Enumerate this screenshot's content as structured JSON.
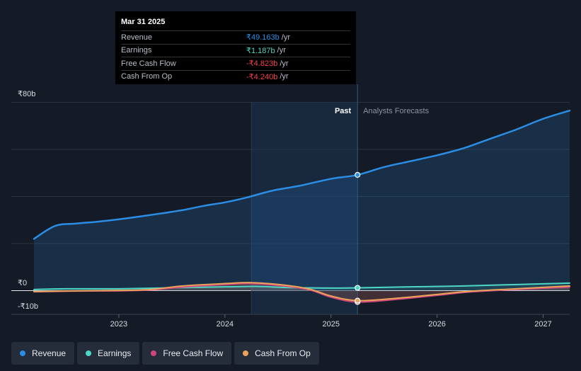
{
  "chart_data": {
    "type": "line",
    "currency": "₹",
    "y_axis_labels": [
      "₹80b",
      "₹0",
      "-₹10b"
    ],
    "ylim": [
      -10,
      80
    ],
    "x_ticks": [
      {
        "label": "2023",
        "x": 2023.0
      },
      {
        "label": "2024",
        "x": 2024.0
      },
      {
        "label": "2025",
        "x": 2025.0
      },
      {
        "label": "2026",
        "x": 2026.0
      },
      {
        "label": "2027",
        "x": 2027.0
      }
    ],
    "xlim": [
      2022.2,
      2027.25
    ],
    "past_forecast_split": 2025.25,
    "shaded_region_start": 2024.25,
    "past_label": "Past",
    "forecast_label": "Analysts Forecasts",
    "series": [
      {
        "name": "Revenue",
        "color": "#2b8de3",
        "fill": true,
        "points": [
          [
            2022.2,
            22
          ],
          [
            2022.4,
            27.5
          ],
          [
            2022.6,
            28.5
          ],
          [
            2022.8,
            29.3
          ],
          [
            2023.0,
            30.3
          ],
          [
            2023.2,
            31.5
          ],
          [
            2023.4,
            32.8
          ],
          [
            2023.6,
            34.2
          ],
          [
            2023.8,
            36
          ],
          [
            2024.0,
            37.5
          ],
          [
            2024.2,
            39.5
          ],
          [
            2024.45,
            42.5
          ],
          [
            2024.7,
            44.5
          ],
          [
            2025.0,
            47.5
          ],
          [
            2025.25,
            49.163
          ],
          [
            2025.5,
            52.5
          ],
          [
            2025.75,
            55
          ],
          [
            2026.0,
            57.5
          ],
          [
            2026.25,
            60.5
          ],
          [
            2026.5,
            64.5
          ],
          [
            2026.75,
            68.5
          ],
          [
            2027.0,
            73
          ],
          [
            2027.25,
            76.5
          ]
        ]
      },
      {
        "name": "Earnings",
        "color": "#4fd7c6",
        "fill": false,
        "points": [
          [
            2022.2,
            0.5
          ],
          [
            2022.5,
            0.8
          ],
          [
            2023.0,
            0.8
          ],
          [
            2023.5,
            1.2
          ],
          [
            2024.0,
            1.6
          ],
          [
            2024.3,
            1.8
          ],
          [
            2024.6,
            1.3
          ],
          [
            2025.0,
            1.1
          ],
          [
            2025.25,
            1.187
          ],
          [
            2025.75,
            1.6
          ],
          [
            2026.25,
            2.0
          ],
          [
            2026.75,
            2.6
          ],
          [
            2027.25,
            3.2
          ]
        ]
      },
      {
        "name": "Free Cash Flow",
        "color": "#d0457e",
        "fill": false,
        "points": [
          [
            2022.2,
            -0.5
          ],
          [
            2022.6,
            -0.2
          ],
          [
            2023.0,
            -0.1
          ],
          [
            2023.3,
            0.3
          ],
          [
            2023.6,
            1.5
          ],
          [
            2024.0,
            2.6
          ],
          [
            2024.25,
            3.0
          ],
          [
            2024.55,
            2.0
          ],
          [
            2024.8,
            0.3
          ],
          [
            2025.0,
            -2.8
          ],
          [
            2025.25,
            -4.823
          ],
          [
            2025.6,
            -3.8
          ],
          [
            2026.0,
            -2.0
          ],
          [
            2026.3,
            -0.6
          ],
          [
            2026.75,
            0.5
          ],
          [
            2027.25,
            1.5
          ]
        ]
      },
      {
        "name": "Cash From Op",
        "color": "#e9a35a",
        "fill": false,
        "points": [
          [
            2022.2,
            -0.4
          ],
          [
            2022.6,
            -0.1
          ],
          [
            2023.0,
            0.1
          ],
          [
            2023.3,
            0.5
          ],
          [
            2023.6,
            2.0
          ],
          [
            2024.0,
            3.0
          ],
          [
            2024.25,
            3.4
          ],
          [
            2024.55,
            2.4
          ],
          [
            2024.8,
            0.6
          ],
          [
            2025.0,
            -2.3
          ],
          [
            2025.25,
            -4.24
          ],
          [
            2025.6,
            -3.3
          ],
          [
            2026.0,
            -1.6
          ],
          [
            2026.3,
            -0.3
          ],
          [
            2026.75,
            0.8
          ],
          [
            2027.25,
            2.0
          ]
        ]
      }
    ]
  },
  "tooltip": {
    "date": "Mar 31 2025",
    "rows": [
      {
        "label": "Revenue",
        "value": "₹49.163b",
        "unit": "/yr",
        "color": "#2b8de3"
      },
      {
        "label": "Earnings",
        "value": "₹1.187b",
        "unit": "/yr",
        "color": "#4fd7c6"
      },
      {
        "label": "Free Cash Flow",
        "value": "-₹4.823b",
        "unit": "/yr",
        "color": "#f2444d"
      },
      {
        "label": "Cash From Op",
        "value": "-₹4.240b",
        "unit": "/yr",
        "color": "#f2444d"
      }
    ]
  },
  "legend": [
    {
      "label": "Revenue",
      "color": "#2b8de3"
    },
    {
      "label": "Earnings",
      "color": "#4fd7c6"
    },
    {
      "label": "Free Cash Flow",
      "color": "#d0457e"
    },
    {
      "label": "Cash From Op",
      "color": "#e9a35a"
    }
  ]
}
